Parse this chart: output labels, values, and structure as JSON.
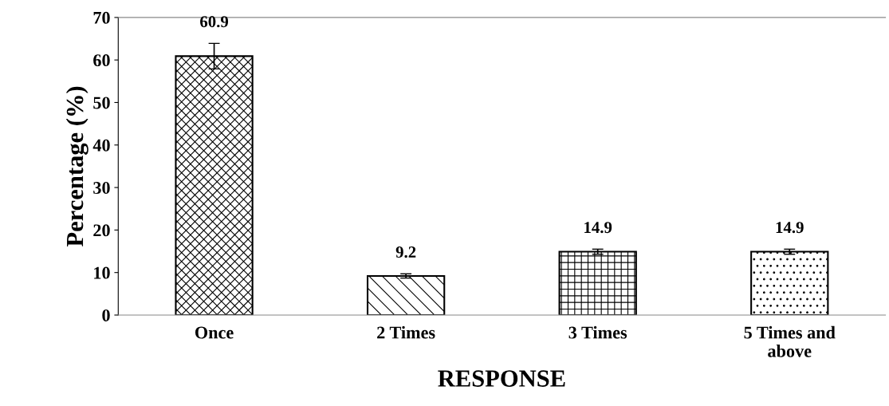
{
  "chart_data": {
    "type": "bar",
    "xlabel": "RESPONSE",
    "ylabel": "Percentage (%)",
    "categories": [
      "Once",
      "2 Times",
      "3 Times",
      "5 Times and\nabove"
    ],
    "values": [
      60.9,
      9.2,
      14.9,
      14.9
    ],
    "errors": [
      3.0,
      0.5,
      0.6,
      0.6
    ],
    "colors": [
      "#000000",
      "#000000",
      "#000000",
      "#000000"
    ],
    "ylim": [
      0,
      70
    ],
    "yticks": [
      0,
      10,
      20,
      30,
      40,
      50,
      60,
      70
    ],
    "data_labels": true,
    "grid": false,
    "legend": false
  }
}
